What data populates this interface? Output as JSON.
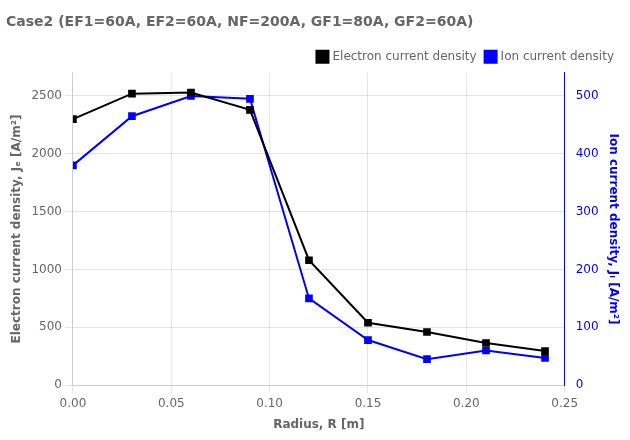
{
  "chart_data": {
    "type": "line",
    "title": "Case2 (EF1=60A, EF2=60A, NF=200A, GF1=80A, GF2=60A)",
    "xlabel": "Radius, R [m]",
    "ylabel": "Electron current density, Jₑ [A/m²]",
    "y2label": "Ion current density, Jᵢ [A/m²]",
    "x": [
      0.0,
      0.03,
      0.06,
      0.09,
      0.12,
      0.15,
      0.18,
      0.21,
      0.24
    ],
    "series": [
      {
        "name": "Electron current density",
        "color": "#000000",
        "marker": "square",
        "values": [
          2300,
          2520,
          2530,
          2380,
          1080,
          540,
          460,
          365,
          295
        ]
      },
      {
        "name": "Ion current density",
        "color": "#0000ff",
        "marker": "square",
        "axis": "y2",
        "values": [
          380,
          465,
          500,
          495,
          150,
          78,
          45,
          60,
          47
        ]
      }
    ],
    "xlim": [
      0.0,
      0.25
    ],
    "xticks": [
      {
        "value": 0,
        "label": "0.00"
      },
      {
        "value": 0.05,
        "label": "0.05"
      },
      {
        "value": 0.1,
        "label": "0.10"
      },
      {
        "value": 0.15,
        "label": "0.15"
      },
      {
        "value": 0.2,
        "label": "0.20"
      },
      {
        "value": 0.25,
        "label": "0.25"
      }
    ],
    "ylim": [
      0,
      2700
    ],
    "yticks": [
      0,
      500,
      1000,
      1500,
      2000,
      2500
    ],
    "y2lim": [
      0,
      540
    ],
    "y2ticks": [
      0,
      100,
      200,
      300,
      400,
      500
    ],
    "grid": true,
    "legend": "upper right"
  }
}
